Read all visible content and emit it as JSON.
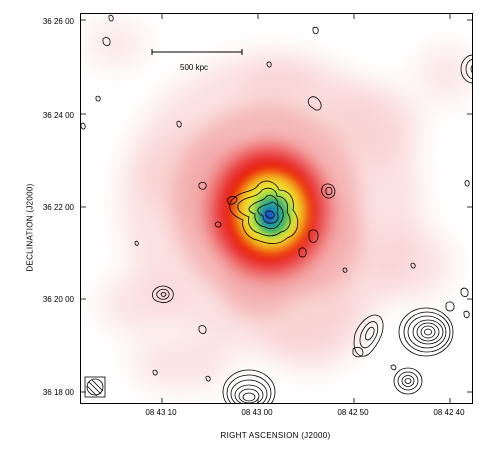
{
  "figure": {
    "x_axis_label": "RIGHT ASCENSION  (J2000)",
    "y_axis_label": "DECLINATION  (J2000)",
    "y_ticks": [
      "36 26 00",
      "36 24 00",
      "36 22 00",
      "36 20 00",
      "36 18 00"
    ],
    "x_ticks": [
      "08 43 10",
      "08 43 00",
      "08 42 50",
      "08 42 40"
    ],
    "scale_bar_label": "500 kpc",
    "colors": {
      "peak": "#1e50c8",
      "mid": "#3cb45a",
      "yellow": "#f0e632",
      "red": "#e60000",
      "pink": "#f6b4b4",
      "contour": "#000000"
    }
  }
}
